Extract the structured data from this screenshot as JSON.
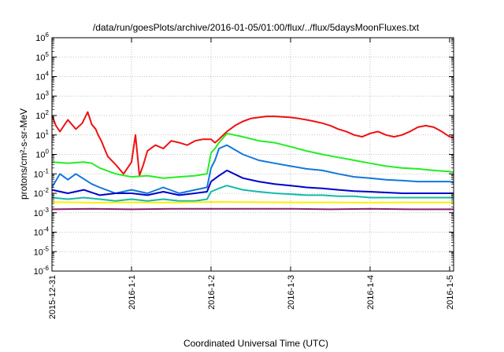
{
  "chart_data": {
    "type": "line",
    "title": "/data/run/goesPlots/archive/2016-01-05/01:00/flux/../flux/5daysMoonFluxes.txt",
    "xlabel": "Coordinated Universal Time (UTC)",
    "ylabel": "protons/cm²-s-sr-MeV",
    "y_scale": "log",
    "ylim_exp": [
      -6,
      6
    ],
    "y_tick_labels": [
      {
        "base": "10",
        "exp": "-6"
      },
      {
        "base": "10",
        "exp": "-5"
      },
      {
        "base": "10",
        "exp": "-4"
      },
      {
        "base": "10",
        "exp": "-3"
      },
      {
        "base": "10",
        "exp": "-2"
      },
      {
        "base": "10",
        "exp": "-1"
      },
      {
        "base": "10",
        "exp": "0"
      },
      {
        "base": "10",
        "exp": "1"
      },
      {
        "base": "10",
        "exp": "2"
      },
      {
        "base": "10",
        "exp": "3"
      },
      {
        "base": "10",
        "exp": "4"
      },
      {
        "base": "10",
        "exp": "5"
      },
      {
        "base": "10",
        "exp": "6"
      }
    ],
    "x_unit": "days since 2015-12-31 00:00",
    "xlim": [
      0,
      5.05
    ],
    "x_ticks": [
      {
        "value": 0,
        "label": "2015-12-31"
      },
      {
        "value": 1,
        "label": "2016-1-1"
      },
      {
        "value": 2,
        "label": "2016-1-2"
      },
      {
        "value": 3,
        "label": "2016-1-3"
      },
      {
        "value": 4,
        "label": "2016-1-4"
      },
      {
        "value": 5,
        "label": "2016-1-5"
      }
    ],
    "grid": true,
    "legend": "none",
    "series": [
      {
        "color": "#ee1111",
        "x": [
          0,
          0.05,
          0.1,
          0.2,
          0.3,
          0.38,
          0.45,
          0.5,
          0.55,
          0.58,
          0.62,
          0.7,
          0.8,
          0.9,
          1.0,
          1.05,
          1.1,
          1.15,
          1.2,
          1.3,
          1.4,
          1.5,
          1.6,
          1.7,
          1.8,
          1.9,
          2.0,
          2.05,
          2.1,
          2.2,
          2.3,
          2.4,
          2.5,
          2.6,
          2.7,
          2.8,
          2.9,
          3.0,
          3.1,
          3.2,
          3.3,
          3.4,
          3.5,
          3.6,
          3.7,
          3.8,
          3.9,
          4.0,
          4.1,
          4.2,
          4.3,
          4.4,
          4.5,
          4.6,
          4.7,
          4.8,
          4.9,
          5.0,
          5.05
        ],
        "y": [
          100,
          30,
          15,
          60,
          20,
          40,
          150,
          35,
          20,
          10,
          5,
          0.8,
          0.3,
          0.1,
          0.4,
          10,
          0.08,
          0.3,
          1.5,
          3,
          2,
          5,
          4,
          3,
          5,
          6,
          6,
          4,
          6,
          15,
          30,
          50,
          70,
          80,
          90,
          90,
          85,
          80,
          70,
          60,
          50,
          40,
          30,
          20,
          15,
          10,
          8,
          12,
          15,
          10,
          8,
          10,
          15,
          25,
          30,
          25,
          15,
          8,
          7
        ]
      },
      {
        "color": "#22ee22",
        "x": [
          0,
          0.2,
          0.4,
          0.5,
          0.6,
          0.8,
          1.0,
          1.2,
          1.4,
          1.6,
          1.8,
          1.95,
          2.0,
          2.05,
          2.1,
          2.2,
          2.4,
          2.6,
          2.8,
          3.0,
          3.2,
          3.4,
          3.6,
          3.8,
          4.0,
          4.2,
          4.4,
          4.6,
          4.8,
          5.0,
          5.05
        ],
        "y": [
          0.4,
          0.35,
          0.4,
          0.35,
          0.2,
          0.1,
          0.07,
          0.08,
          0.06,
          0.07,
          0.08,
          0.1,
          1.2,
          2,
          4,
          12,
          8,
          5,
          4,
          2.5,
          1.5,
          1.0,
          0.7,
          0.5,
          0.35,
          0.25,
          0.2,
          0.18,
          0.15,
          0.13,
          0.12
        ]
      },
      {
        "color": "#1177dd",
        "x": [
          0,
          0.1,
          0.2,
          0.3,
          0.5,
          0.6,
          0.8,
          1.0,
          1.2,
          1.4,
          1.6,
          1.8,
          1.95,
          2.0,
          2.05,
          2.1,
          2.2,
          2.4,
          2.6,
          2.8,
          3.0,
          3.2,
          3.4,
          3.6,
          3.8,
          4.0,
          4.2,
          4.4,
          4.6,
          4.8,
          5.0,
          5.05
        ],
        "y": [
          0.02,
          0.1,
          0.05,
          0.1,
          0.03,
          0.02,
          0.01,
          0.015,
          0.01,
          0.02,
          0.01,
          0.015,
          0.02,
          0.2,
          0.5,
          2,
          3,
          1,
          0.5,
          0.35,
          0.25,
          0.18,
          0.15,
          0.1,
          0.07,
          0.06,
          0.05,
          0.045,
          0.04,
          0.04,
          0.04,
          0.035
        ]
      },
      {
        "color": "#0000cc",
        "x": [
          0,
          0.2,
          0.4,
          0.6,
          0.8,
          1.0,
          1.2,
          1.4,
          1.6,
          1.8,
          1.95,
          2.0,
          2.1,
          2.2,
          2.4,
          2.6,
          2.8,
          3.0,
          3.2,
          3.4,
          3.6,
          3.8,
          4.0,
          4.2,
          4.4,
          4.6,
          4.8,
          5.0,
          5.05
        ],
        "y": [
          0.015,
          0.01,
          0.015,
          0.008,
          0.01,
          0.01,
          0.008,
          0.012,
          0.008,
          0.01,
          0.012,
          0.04,
          0.08,
          0.15,
          0.06,
          0.04,
          0.03,
          0.025,
          0.02,
          0.018,
          0.015,
          0.013,
          0.012,
          0.011,
          0.01,
          0.01,
          0.01,
          0.01,
          0.01
        ]
      },
      {
        "color": "#11bbaa",
        "x": [
          0,
          0.2,
          0.4,
          0.6,
          0.8,
          1.0,
          1.2,
          1.4,
          1.6,
          1.8,
          1.95,
          2.0,
          2.1,
          2.2,
          2.4,
          2.6,
          2.8,
          3.0,
          3.2,
          3.4,
          3.6,
          3.8,
          4.0,
          4.2,
          4.4,
          4.6,
          4.8,
          5.0,
          5.05
        ],
        "y": [
          0.006,
          0.005,
          0.006,
          0.005,
          0.004,
          0.005,
          0.004,
          0.005,
          0.004,
          0.004,
          0.005,
          0.012,
          0.018,
          0.025,
          0.015,
          0.012,
          0.01,
          0.009,
          0.008,
          0.008,
          0.007,
          0.007,
          0.006,
          0.006,
          0.006,
          0.006,
          0.006,
          0.006,
          0.006
        ]
      },
      {
        "color": "#ffee00",
        "x": [
          0,
          0.5,
          1.0,
          1.5,
          2.0,
          2.5,
          3.0,
          3.5,
          4.0,
          4.5,
          5.05
        ],
        "y": [
          0.0035,
          0.0033,
          0.0034,
          0.0033,
          0.0036,
          0.0035,
          0.0034,
          0.0034,
          0.0033,
          0.0034,
          0.0034
        ]
      },
      {
        "color": "#882266",
        "x": [
          0,
          0.5,
          1.0,
          1.5,
          2.0,
          2.5,
          3.0,
          3.5,
          4.0,
          4.5,
          5.05
        ],
        "y": [
          0.0015,
          0.0016,
          0.0015,
          0.0016,
          0.0016,
          0.0016,
          0.0016,
          0.0015,
          0.0016,
          0.0015,
          0.0015
        ]
      }
    ]
  }
}
